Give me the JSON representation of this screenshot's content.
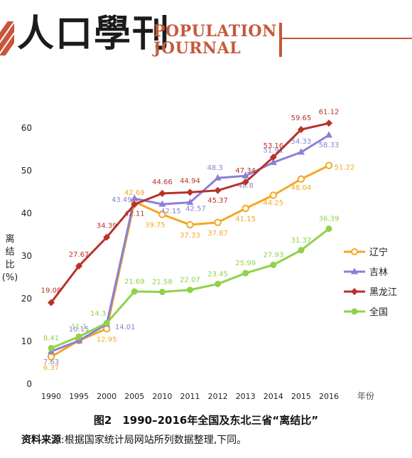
{
  "header": {
    "logo_cn": "人口學刊",
    "logo_en_line1": "POPULATION",
    "logo_en_line2": "JOURNAL"
  },
  "caption": "图2　1990–2016年全国及东北三省“离结比”",
  "source": {
    "label": "资料来源",
    "text": ":根据国家统计局网站所列数据整理,下同。"
  },
  "chart_data": {
    "type": "line",
    "title": "图2　1990–2016年全国及东北三省“离结比”",
    "ylabel_lines": [
      "离",
      "结",
      "比",
      "(%)"
    ],
    "xlabel": "年份",
    "categories": [
      "1990",
      "1995",
      "2000",
      "2005",
      "2010",
      "2011",
      "2012",
      "2013",
      "2014",
      "2015",
      "2016"
    ],
    "yticks": [
      0,
      10,
      20,
      30,
      40,
      50,
      60
    ],
    "ylim": [
      0,
      62
    ],
    "grid": false,
    "legend_position": "right",
    "series": [
      {
        "name": "辽宁",
        "color": "#f5a623",
        "values": [
          6.37,
          10.2,
          12.95,
          42.69,
          39.75,
          37.33,
          37.87,
          41.15,
          44.25,
          48.04,
          51.22
        ],
        "labels": [
          "6.37",
          "",
          "12.95",
          "42.69",
          "39.75",
          "37.33",
          "37.87",
          "41.15",
          "44.25",
          "48.04",
          "51.22"
        ]
      },
      {
        "name": "吉林",
        "color": "#8b7fd6",
        "values": [
          7.63,
          10.15,
          14.01,
          43.49,
          42.15,
          42.57,
          48.3,
          48.8,
          51.91,
          54.33,
          58.33
        ],
        "labels": [
          "7.63",
          "10.15",
          "14.01",
          "43.49",
          "42.15",
          "42.57",
          "48.3",
          "48.8",
          "51.91",
          "54.33",
          "58.33"
        ]
      },
      {
        "name": "黑龙江",
        "color": "#b8322a",
        "values": [
          19.08,
          27.67,
          34.39,
          42.11,
          44.66,
          44.94,
          45.37,
          47.34,
          53.16,
          59.65,
          61.12
        ],
        "labels": [
          "19.08",
          "27.67",
          "34.39",
          "42.11",
          "44.66",
          "44.94",
          "45.37",
          "47.34",
          "53.16",
          "59.65",
          "61.12"
        ]
      },
      {
        "name": "全国",
        "color": "#8fd24a",
        "values": [
          8.41,
          11.1,
          14.3,
          21.69,
          21.58,
          22.07,
          23.45,
          25.99,
          27.93,
          31.37,
          36.39
        ],
        "labels": [
          "8.41",
          "11.1",
          "14.3",
          "21.69",
          "21.58",
          "22.07",
          "23.45",
          "25.99",
          "27.93",
          "31.37",
          "36.39"
        ]
      }
    ]
  }
}
